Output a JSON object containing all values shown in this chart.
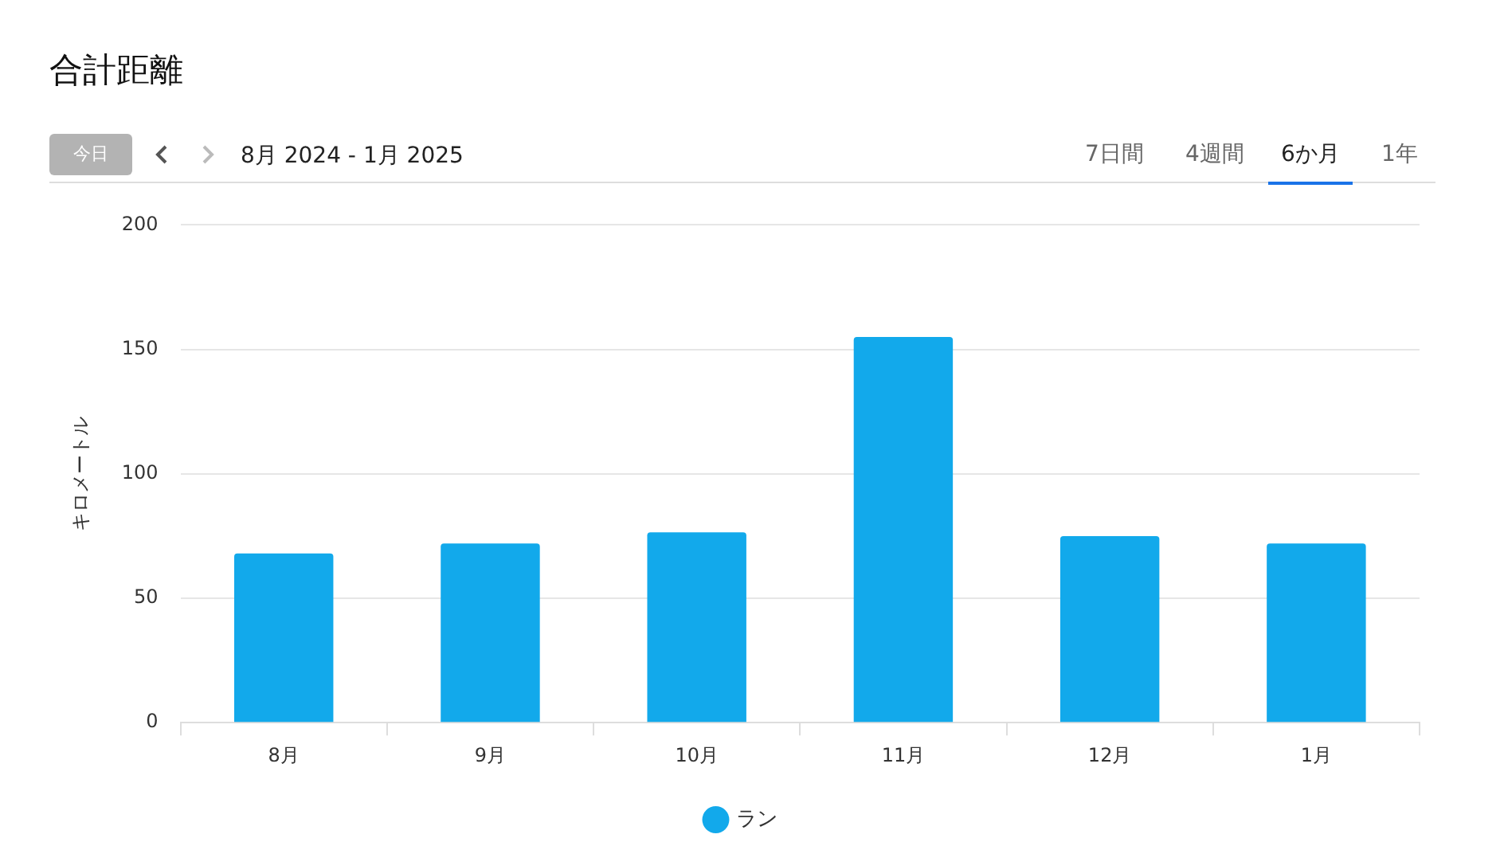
{
  "chart_data": {
    "type": "bar",
    "title": "合計距離",
    "ylabel": "キロメートル",
    "annotations": [
      "今日",
      "8月 2024 - 1月 2025",
      "7日間",
      "4週間",
      "6か月",
      "1年"
    ],
    "categories": [
      "8月",
      "9月",
      "10月",
      "11月",
      "12月",
      "1月"
    ],
    "series": [
      {
        "name": "ラン",
        "color": "#12a9eb",
        "values": [
          68,
          72,
          76.5,
          155,
          75,
          72
        ]
      }
    ],
    "ylim": [
      0,
      200
    ],
    "yticks": [
      0,
      50,
      100,
      150,
      200
    ],
    "grid": "y",
    "legend": "bottom"
  }
}
